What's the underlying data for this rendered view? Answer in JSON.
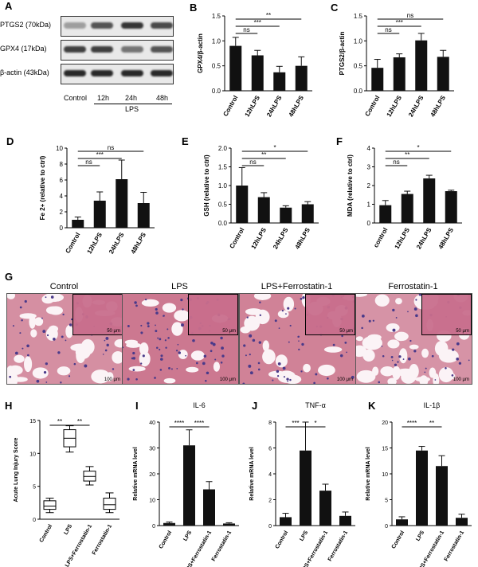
{
  "panels": {
    "A": {
      "letter": "A",
      "rows": [
        "PTGS2 (70kDa)",
        "GPX4 (17kDa)",
        "β-actin (43kDa)"
      ],
      "lanes": [
        "Control",
        "12h",
        "24h",
        "48h"
      ],
      "group_label": "LPS"
    },
    "G": {
      "letter": "G",
      "titles": [
        "Control",
        "LPS",
        "LPS+Ferrostatin-1",
        "Ferrostatin-1"
      ],
      "scale_main": "100 μm",
      "scale_inset": "50 μm"
    }
  },
  "chart_data": [
    {
      "id": "B",
      "letter": "B",
      "type": "bar",
      "categories": [
        "Control",
        "12hLPS",
        "24hLPS",
        "48hLPS"
      ],
      "values": [
        0.9,
        0.71,
        0.37,
        0.5
      ],
      "errors": [
        0.17,
        0.1,
        0.12,
        0.18
      ],
      "ylabel": "GPX4/β-actin",
      "yticks": [
        "0.0",
        "0.5",
        "1.0",
        "1.5"
      ],
      "ylim": [
        0,
        1.5
      ],
      "sig": [
        {
          "from": 0,
          "to": 1,
          "label": "ns"
        },
        {
          "from": 0,
          "to": 2,
          "label": "***"
        },
        {
          "from": 0,
          "to": 3,
          "label": "**"
        }
      ]
    },
    {
      "id": "C",
      "letter": "C",
      "type": "bar",
      "categories": [
        "Control",
        "12hLPS",
        "24hLPS",
        "48hLPS"
      ],
      "values": [
        0.46,
        0.67,
        1.01,
        0.68
      ],
      "errors": [
        0.17,
        0.07,
        0.14,
        0.13
      ],
      "ylabel": "PTGS2/β-actin",
      "yticks": [
        "0.0",
        "0.5",
        "1.0",
        "1.5"
      ],
      "ylim": [
        0,
        1.5
      ],
      "sig": [
        {
          "from": 0,
          "to": 1,
          "label": "ns"
        },
        {
          "from": 0,
          "to": 2,
          "label": "***"
        },
        {
          "from": 0,
          "to": 3,
          "label": "ns"
        }
      ]
    },
    {
      "id": "D",
      "letter": "D",
      "type": "bar",
      "categories": [
        "Control",
        "12hLPS",
        "24hLPS",
        "48hLPS"
      ],
      "values": [
        1.0,
        3.4,
        6.1,
        3.1
      ],
      "errors": [
        0.35,
        1.1,
        2.4,
        1.35
      ],
      "ylabel": "Fe 2+ (relative to ctrl)",
      "yticks": [
        "0",
        "2",
        "4",
        "6",
        "8",
        "10"
      ],
      "ylim": [
        0,
        10
      ],
      "sig": [
        {
          "from": 0,
          "to": 1,
          "label": "ns"
        },
        {
          "from": 0,
          "to": 2,
          "label": "***"
        },
        {
          "from": 0,
          "to": 3,
          "label": "ns"
        }
      ]
    },
    {
      "id": "E",
      "letter": "E",
      "type": "bar",
      "categories": [
        "Control",
        "12hLPS",
        "24hLPS",
        "48hLPS"
      ],
      "values": [
        1.0,
        0.69,
        0.41,
        0.5
      ],
      "errors": [
        0.48,
        0.12,
        0.05,
        0.07
      ],
      "ylabel": "GSH (relative to ctrl)",
      "yticks": [
        "0.0",
        "0.5",
        "1.0",
        "1.5",
        "2.0"
      ],
      "ylim": [
        0,
        2
      ],
      "sig": [
        {
          "from": 0,
          "to": 1,
          "label": "ns"
        },
        {
          "from": 0,
          "to": 2,
          "label": "**"
        },
        {
          "from": 0,
          "to": 3,
          "label": "*"
        }
      ]
    },
    {
      "id": "F",
      "letter": "F",
      "type": "bar",
      "categories": [
        "control",
        "12hLPS",
        "24hLPS",
        "48hLPS"
      ],
      "values": [
        0.95,
        1.55,
        2.38,
        1.7
      ],
      "errors": [
        0.25,
        0.15,
        0.17,
        0.05
      ],
      "ylabel": "MDA (relative to ctrl)",
      "yticks": [
        "0",
        "1",
        "2",
        "3",
        "4"
      ],
      "ylim": [
        0,
        4
      ],
      "sig": [
        {
          "from": 0,
          "to": 1,
          "label": "ns"
        },
        {
          "from": 0,
          "to": 2,
          "label": "**"
        },
        {
          "from": 0,
          "to": 3,
          "label": "*"
        }
      ]
    },
    {
      "id": "H",
      "letter": "H",
      "type": "box",
      "categories": [
        "Control",
        "LPS",
        "LPS+Ferrostatin-1",
        "Ferrostatin-1"
      ],
      "boxes": [
        {
          "min": 1,
          "q1": 1.5,
          "median": 2,
          "q3": 2.8,
          "max": 3.2
        },
        {
          "min": 10.2,
          "q1": 11,
          "median": 12.3,
          "q3": 13.6,
          "max": 14.2
        },
        {
          "min": 5.2,
          "q1": 5.8,
          "median": 6.5,
          "q3": 7.3,
          "max": 8
        },
        {
          "min": 1,
          "q1": 1.5,
          "median": 2.2,
          "q3": 3.2,
          "max": 4
        }
      ],
      "ylabel": "Acute Lung Injury Score",
      "yticks": [
        "0",
        "5",
        "10",
        "15"
      ],
      "ylim": [
        0,
        15
      ],
      "sig": [
        {
          "from": 0,
          "to": 1,
          "label": "**"
        },
        {
          "from": 1,
          "to": 2,
          "label": "**"
        }
      ]
    },
    {
      "id": "I",
      "letter": "I",
      "type": "bar",
      "title": "IL-6",
      "categories": [
        "Control",
        "LPS",
        "LPS+Ferrostatin-1",
        "Ferrostatin-1"
      ],
      "values": [
        1,
        31,
        14,
        0.8
      ],
      "errors": [
        0.4,
        6,
        3,
        0.3
      ],
      "ylabel": "Relative mRNA level",
      "yticks": [
        "0",
        "10",
        "20",
        "30",
        "40"
      ],
      "ylim": [
        0,
        40
      ],
      "sig": [
        {
          "from": 0,
          "to": 1,
          "label": "****"
        },
        {
          "from": 1,
          "to": 2,
          "label": "****"
        }
      ]
    },
    {
      "id": "J",
      "letter": "J",
      "type": "bar",
      "title": "TNF-α",
      "categories": [
        "Control",
        "LPS",
        "LPS+Ferrostatin-1",
        "Ferrostatin-1"
      ],
      "values": [
        0.65,
        5.8,
        2.7,
        0.75
      ],
      "errors": [
        0.3,
        2.2,
        0.5,
        0.3
      ],
      "ylabel": "Relative mRNA level",
      "yticks": [
        "0",
        "2",
        "4",
        "6",
        "8"
      ],
      "ylim": [
        0,
        8
      ],
      "sig": [
        {
          "from": 0,
          "to": 1,
          "label": "***"
        },
        {
          "from": 1,
          "to": 2,
          "label": "*"
        }
      ]
    },
    {
      "id": "K",
      "letter": "K",
      "type": "bar",
      "title": "IL-1β",
      "categories": [
        "Control",
        "LPS",
        "LPS+Ferrostatin-1",
        "Ferrostatin-1"
      ],
      "values": [
        1.2,
        14.5,
        11.5,
        1.5
      ],
      "errors": [
        0.5,
        0.8,
        2,
        0.7
      ],
      "ylabel": "Relative mRNA level",
      "yticks": [
        "0",
        "5",
        "10",
        "15",
        "20"
      ],
      "ylim": [
        0,
        20
      ],
      "sig": [
        {
          "from": 0,
          "to": 1,
          "label": "****"
        },
        {
          "from": 1,
          "to": 2,
          "label": "**"
        }
      ]
    }
  ]
}
